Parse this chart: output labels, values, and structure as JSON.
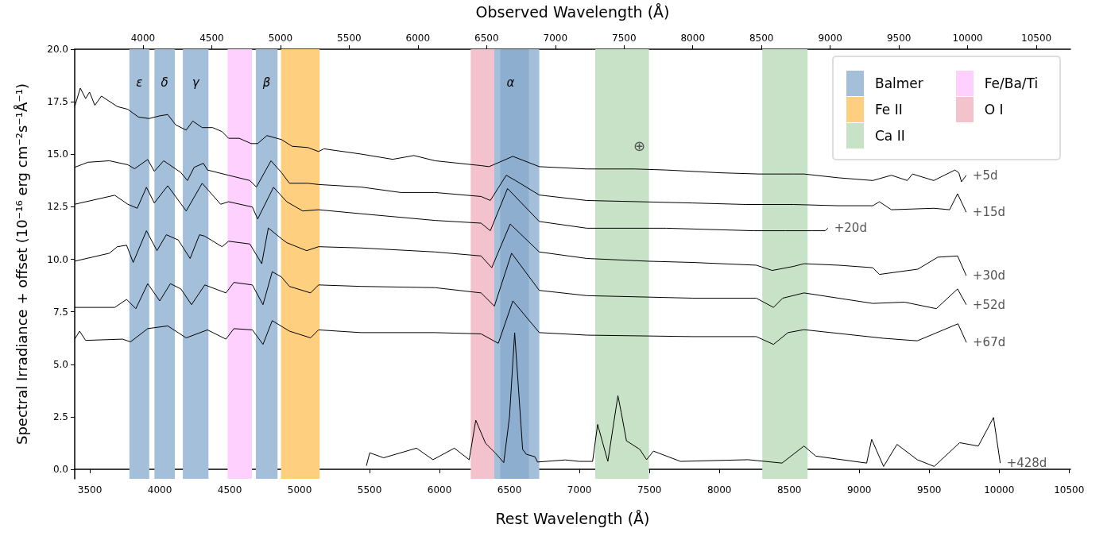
{
  "chart_data": {
    "type": "line",
    "xlabel": "Rest Wavelength (Å)",
    "x2label": "Observed Wavelength (Å)",
    "ylabel": "Spectral Irradiance + offset (10⁻¹⁶ erg cm⁻²s⁻¹Å⁻¹)",
    "xlim": [
      3392,
      10510
    ],
    "xticks": [
      3500,
      4000,
      4500,
      5000,
      5500,
      6000,
      6500,
      7000,
      7500,
      8000,
      8500,
      9000,
      9500,
      10000,
      10500
    ],
    "x2lim": [
      3503,
      10748
    ],
    "x2ticks": [
      4000,
      4500,
      5000,
      5500,
      6000,
      6500,
      7000,
      7500,
      8000,
      8500,
      9000,
      9500,
      10000,
      10500
    ],
    "ylim": [
      -0.45,
      20
    ],
    "yticks": [
      {
        "value": 0,
        "label": "0.0"
      },
      2.5,
      {
        "value": 5,
        "label": "5.0"
      },
      7.5,
      {
        "value": 10,
        "label": "10.0"
      },
      12.5,
      {
        "value": 15,
        "label": "15.0"
      },
      17.5,
      {
        "value": 20,
        "label": "20.0"
      }
    ],
    "grid": false,
    "line_style": "solid",
    "marker": "none",
    "series": [
      {
        "name": "+5d",
        "color": "#000000",
        "x": [
          3392,
          3432,
          3470,
          3498,
          3536,
          3583,
          3697,
          3772,
          3848,
          3924,
          4000,
          4057,
          4114,
          4189,
          4236,
          4303,
          4378,
          4445,
          4492,
          4568,
          4653,
          4700,
          4766,
          4870,
          4946,
          5059,
          5135,
          5173,
          5438,
          5665,
          5817,
          5968,
          6297,
          6354,
          6524,
          6713,
          7053,
          7394,
          7621,
          7999,
          8283,
          8529,
          8605,
          8851,
          9097,
          9230,
          9343,
          9381,
          9533,
          9684,
          9712,
          9731,
          9765
        ],
        "values": [
          17.27,
          18.15,
          17.65,
          17.96,
          17.33,
          17.77,
          17.27,
          17.14,
          16.77,
          16.7,
          16.83,
          16.89,
          16.4,
          16.15,
          16.58,
          16.27,
          16.27,
          16.08,
          15.76,
          15.76,
          15.51,
          15.51,
          15.89,
          15.7,
          15.38,
          15.32,
          15.13,
          15.26,
          15.01,
          14.76,
          14.94,
          14.69,
          14.46,
          14.41,
          14.9,
          14.41,
          14.3,
          14.3,
          14.25,
          14.12,
          14.06,
          14.06,
          14.06,
          13.88,
          13.75,
          14.0,
          13.75,
          14.06,
          13.75,
          14.25,
          14.12,
          13.69,
          14.0
        ]
      },
      {
        "name": "+15d",
        "color": "#000000",
        "x": [
          3392,
          3487,
          3640,
          3772,
          3820,
          3914,
          3961,
          4028,
          4151,
          4198,
          4246,
          4312,
          4341,
          4492,
          4644,
          4691,
          4795,
          4870,
          4927,
          5059,
          5135,
          5438,
          5722,
          5968,
          6297,
          6363,
          6477,
          6543,
          6713,
          7053,
          7432,
          7811,
          8189,
          8529,
          8851,
          9097,
          9144,
          9230,
          9533,
          9646,
          9703,
          9765
        ],
        "values": [
          14.38,
          14.62,
          14.69,
          14.5,
          14.31,
          14.75,
          14.19,
          14.69,
          14.13,
          13.75,
          14.38,
          14.57,
          14.25,
          14.0,
          13.75,
          13.44,
          14.69,
          14.13,
          13.62,
          13.62,
          13.56,
          13.44,
          13.18,
          13.18,
          12.99,
          12.8,
          14.0,
          13.75,
          13.06,
          12.8,
          12.74,
          12.68,
          12.61,
          12.61,
          12.55,
          12.55,
          12.74,
          12.36,
          12.43,
          12.36,
          13.12,
          12.24
        ]
      },
      {
        "name": "+20d",
        "color": "#000000",
        "x": [
          3392,
          3678,
          3772,
          3839,
          3905,
          3961,
          4057,
          4189,
          4303,
          4435,
          4492,
          4662,
          4700,
          4813,
          4908,
          5022,
          5135,
          5438,
          5968,
          6297,
          6363,
          6486,
          6713,
          7053,
          7621,
          8245,
          8473,
          8662,
          8757,
          8776
        ],
        "values": [
          12.62,
          13.05,
          12.62,
          12.43,
          13.43,
          12.68,
          13.5,
          12.3,
          13.62,
          12.62,
          12.74,
          12.49,
          11.92,
          13.43,
          12.74,
          12.3,
          12.36,
          12.17,
          11.85,
          11.72,
          11.36,
          13.37,
          11.8,
          11.48,
          11.48,
          11.36,
          11.36,
          11.36,
          11.36,
          11.48
        ]
      },
      {
        "name": "+30d",
        "color": "#000000",
        "x": [
          3392,
          3640,
          3697,
          3763,
          3810,
          3905,
          3980,
          4047,
          4132,
          4217,
          4284,
          4322,
          4445,
          4492,
          4644,
          4729,
          4776,
          4870,
          4908,
          5050,
          5135,
          5438,
          5968,
          6297,
          6373,
          6505,
          6713,
          7053,
          7488,
          7811,
          8264,
          8378,
          8529,
          8605,
          8851,
          9097,
          9144,
          9419,
          9561,
          9703,
          9765
        ],
        "values": [
          9.91,
          10.29,
          10.6,
          10.67,
          9.85,
          11.36,
          10.41,
          11.17,
          10.92,
          10.04,
          11.17,
          11.1,
          10.6,
          10.86,
          10.73,
          9.79,
          11.49,
          10.98,
          10.79,
          10.41,
          10.6,
          10.54,
          10.35,
          10.16,
          9.6,
          11.68,
          10.35,
          10.04,
          9.91,
          9.85,
          9.72,
          9.47,
          9.66,
          9.79,
          9.72,
          9.6,
          9.28,
          9.53,
          10.1,
          10.16,
          9.22
        ]
      },
      {
        "name": "+52d",
        "color": "#000000",
        "x": [
          3392,
          3678,
          3763,
          3829,
          3914,
          4000,
          4076,
          4151,
          4227,
          4322,
          4473,
          4530,
          4662,
          4738,
          4804,
          4870,
          4927,
          5078,
          5135,
          5438,
          5968,
          6297,
          6392,
          6515,
          6713,
          7053,
          7811,
          8264,
          8387,
          8453,
          8605,
          8851,
          9097,
          9324,
          9551,
          9703,
          9765
        ],
        "values": [
          7.71,
          7.71,
          8.09,
          7.65,
          8.84,
          8.02,
          8.84,
          8.59,
          7.84,
          8.78,
          8.4,
          8.9,
          8.78,
          7.84,
          9.41,
          9.16,
          8.71,
          8.4,
          8.78,
          8.71,
          8.65,
          8.4,
          7.77,
          10.29,
          8.52,
          8.27,
          8.15,
          8.15,
          7.71,
          8.15,
          8.4,
          8.15,
          7.9,
          7.96,
          7.65,
          8.59,
          7.84
        ]
      },
      {
        "name": "+67d",
        "color": "#000000",
        "x": [
          3392,
          3427,
          3470,
          3734,
          3791,
          3914,
          4057,
          4189,
          4341,
          4473,
          4530,
          4662,
          4738,
          4804,
          4927,
          5078,
          5135,
          5438,
          5968,
          6297,
          6420,
          6524,
          6713,
          7053,
          7811,
          8264,
          8387,
          8491,
          8605,
          9174,
          9415,
          9706,
          9766
        ],
        "values": [
          6.2,
          6.58,
          6.14,
          6.2,
          6.07,
          6.7,
          6.83,
          6.26,
          6.64,
          6.2,
          6.7,
          6.64,
          5.95,
          7.08,
          6.58,
          6.26,
          6.64,
          6.51,
          6.51,
          6.45,
          6.0,
          8.02,
          6.51,
          6.39,
          6.32,
          6.32,
          5.95,
          6.51,
          6.65,
          6.24,
          6.12,
          6.93,
          6.04
        ]
      },
      {
        "name": "+428d",
        "color": "#000000",
        "x": [
          5477,
          5501,
          5600,
          5835,
          5953,
          6106,
          6212,
          6259,
          6329,
          6400,
          6459,
          6500,
          6537,
          6594,
          6620,
          6682,
          6700,
          6900,
          6997,
          7094,
          7130,
          7203,
          7275,
          7299,
          7336,
          7432,
          7480,
          7529,
          7722,
          8206,
          8448,
          8605,
          8690,
          9053,
          9089,
          9174,
          9270,
          9415,
          9536,
          9718,
          9851,
          9960,
          10008
        ],
        "values": [
          0.17,
          0.79,
          0.55,
          1.01,
          0.46,
          1.01,
          0.46,
          2.34,
          1.24,
          0.77,
          0.32,
          2.5,
          6.5,
          0.95,
          0.72,
          0.6,
          0.35,
          0.45,
          0.38,
          0.38,
          2.14,
          0.38,
          3.51,
          2.7,
          1.36,
          0.95,
          0.46,
          0.87,
          0.38,
          0.46,
          0.3,
          1.11,
          0.63,
          0.3,
          1.43,
          0.14,
          1.19,
          0.46,
          0.14,
          1.27,
          1.11,
          2.47,
          0.3
        ]
      }
    ],
    "bands": [
      {
        "axis": "x",
        "from": 3783,
        "to": 3925,
        "label": "ε",
        "color": "#a3bfd9"
      },
      {
        "axis": "x",
        "from": 3962,
        "to": 4108,
        "label": "δ",
        "color": "#a3bfd9"
      },
      {
        "axis": "x",
        "from": 4165,
        "to": 4348,
        "label": "γ",
        "color": "#a3bfd9"
      },
      {
        "axis": "x",
        "from": 4687,
        "to": 4842,
        "label": "β",
        "color": "#a3bfd9"
      },
      {
        "axis": "x",
        "from": 6303,
        "to": 6713,
        "label": "α",
        "color": "#a3bfd9"
      },
      {
        "axis": "x",
        "from": 6434,
        "to": 6639,
        "color": "#8eaed0"
      },
      {
        "axis": "x",
        "from": 4866,
        "to": 5143,
        "color": "#fecf7f"
      },
      {
        "axis": "x",
        "from": 8307,
        "to": 8631,
        "color": "#c7e2c6"
      },
      {
        "axis": "x",
        "from": 7113,
        "to": 7497,
        "color": "#c7e2c6"
      },
      {
        "axis": "x",
        "from": 4485,
        "to": 4659,
        "color": "#fdd0fd"
      },
      {
        "axis": "x",
        "from": 6223,
        "to": 6391,
        "color": "#f3c2cc"
      }
    ],
    "annotations": [
      "⊕",
      "Balmer",
      "Fe II",
      "Ca II",
      "Fe/Ba/Ti",
      "O I"
    ]
  }
}
